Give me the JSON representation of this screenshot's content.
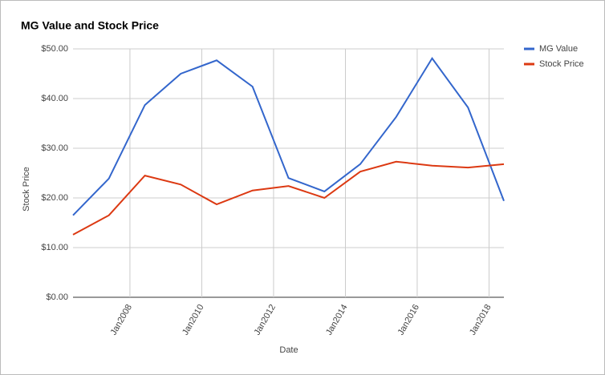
{
  "chart_data": {
    "type": "line",
    "title": "MG Value and Stock Price",
    "x_label": "Date",
    "y_label": "Stock Price",
    "x": [
      "2006-06",
      "2007-06",
      "2008-06",
      "2009-06",
      "2010-06",
      "2011-06",
      "2012-06",
      "2013-06",
      "2014-06",
      "2015-06",
      "2016-06",
      "2017-06",
      "2018-06"
    ],
    "series": [
      {
        "name": "MG Value",
        "color": "#3366cc",
        "values": [
          16.5,
          23.9,
          38.7,
          45.0,
          47.7,
          42.4,
          24.0,
          21.3,
          26.8,
          36.3,
          48.1,
          38.2,
          19.4
        ]
      },
      {
        "name": "Stock Price",
        "color": "#dc3912",
        "values": [
          12.6,
          16.5,
          24.5,
          22.7,
          18.7,
          21.5,
          22.4,
          20.0,
          25.3,
          27.3,
          26.5,
          26.1,
          26.8
        ]
      }
    ],
    "xlim": [
      "2006-06",
      "2018-06"
    ],
    "xticks": [
      {
        "value": "2008-01",
        "label": "Jan2008"
      },
      {
        "value": "2010-01",
        "label": "Jan2010"
      },
      {
        "value": "2012-01",
        "label": "Jan2012"
      },
      {
        "value": "2014-01",
        "label": "Jan2014"
      },
      {
        "value": "2016-01",
        "label": "Jan2016"
      },
      {
        "value": "2018-01",
        "label": "Jan2018"
      }
    ],
    "ylim": [
      0,
      50
    ],
    "yticks": [
      {
        "value": 0,
        "label": "$0.00"
      },
      {
        "value": 10,
        "label": "$10.00"
      },
      {
        "value": 20,
        "label": "$20.00"
      },
      {
        "value": 30,
        "label": "$30.00"
      },
      {
        "value": 40,
        "label": "$40.00"
      },
      {
        "value": 50,
        "label": "$50.00"
      }
    ],
    "grid": true,
    "legend": "right"
  }
}
